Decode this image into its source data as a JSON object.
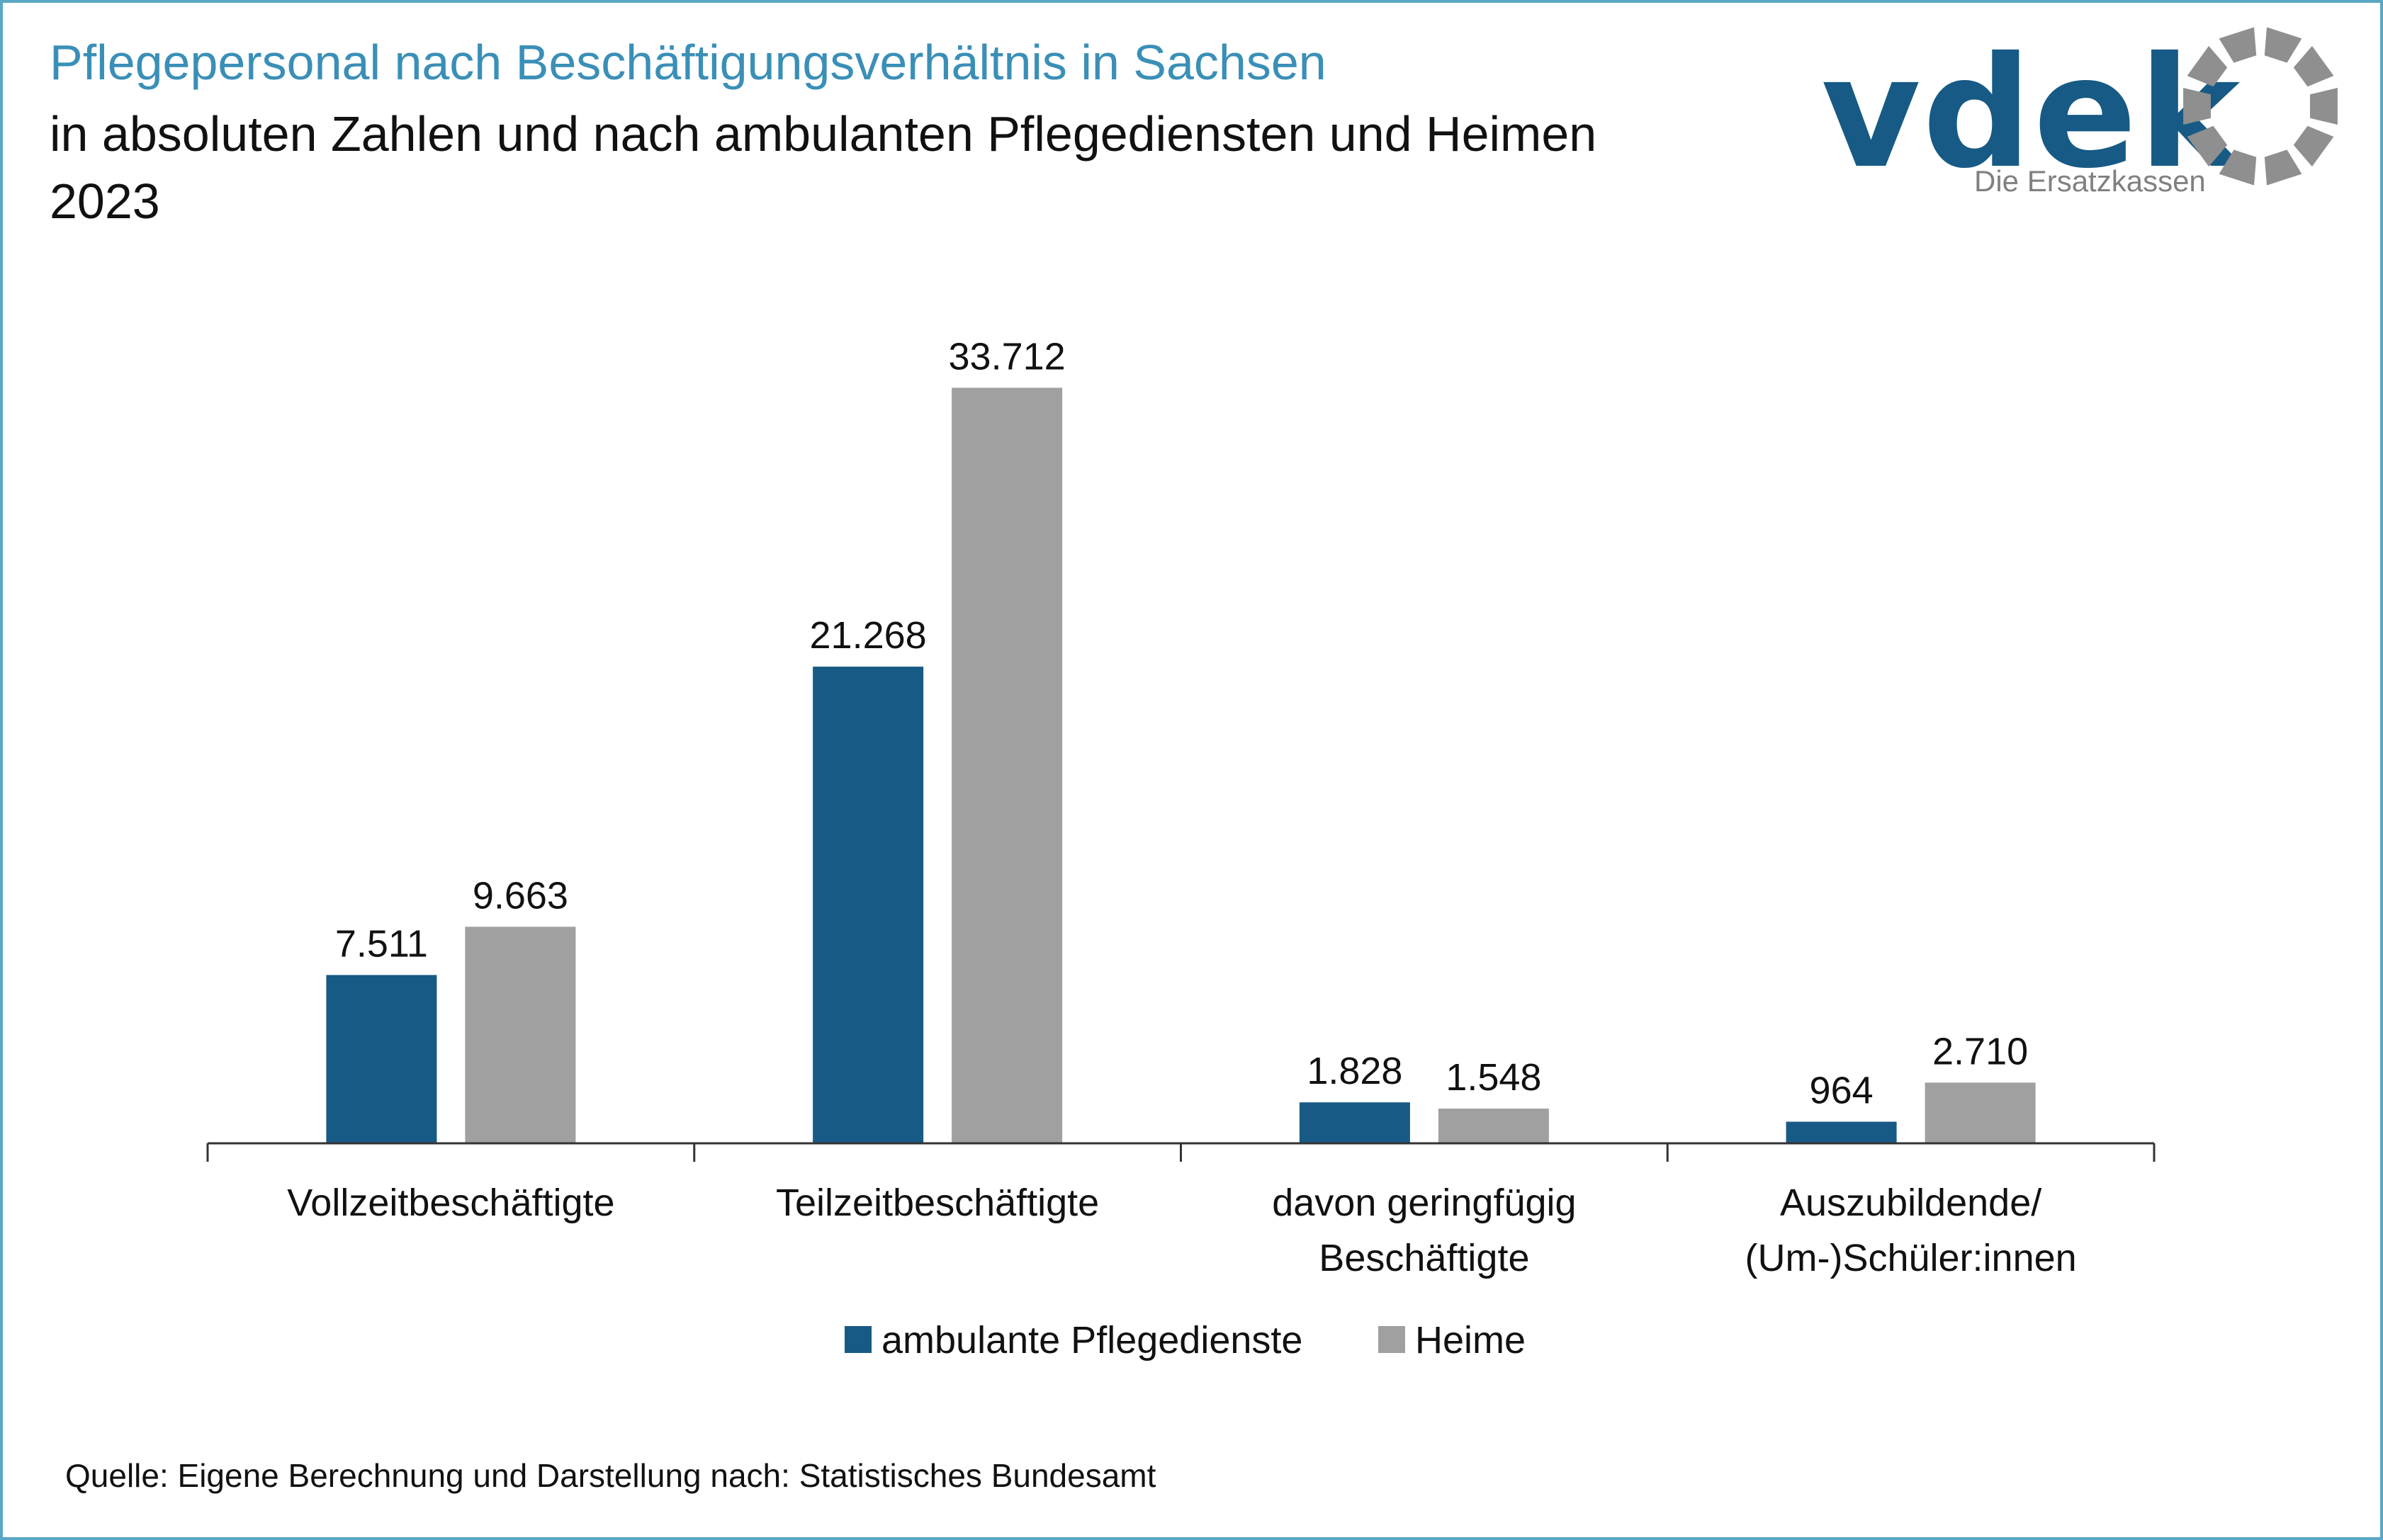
{
  "header": {
    "title": "Pflegepersonal nach Beschäftigungsverhältnis in Sachsen",
    "subtitle_line1": "in absoluten Zahlen und nach ambulanten Pflegediensten und Heimen",
    "subtitle_line2": "2023"
  },
  "logo": {
    "wordmark": "vdek",
    "tagline": "Die Ersatzkassen",
    "icon": "ring-of-segments-icon"
  },
  "chart_data": {
    "type": "bar",
    "title": "Pflegepersonal nach Beschäftigungsverhältnis in Sachsen",
    "categories": [
      [
        "Vollzeitbeschäftigte"
      ],
      [
        "Teilzeitbeschäftigte"
      ],
      [
        "davon geringfügig",
        "Beschäftigte"
      ],
      [
        "Auszubildende/",
        "(Um-)Schüler:innen"
      ]
    ],
    "series": [
      {
        "name": "ambulante Pflegedienste",
        "color": "#175a85",
        "values": [
          7511,
          21268,
          1828,
          964
        ],
        "labels": [
          "7.511",
          "21.268",
          "1.828",
          "964"
        ]
      },
      {
        "name": "Heime",
        "color": "#a0a0a0",
        "values": [
          9663,
          33712,
          1548,
          2710
        ],
        "labels": [
          "9.663",
          "33.712",
          "1.548",
          "2.710"
        ]
      }
    ],
    "ylim": [
      0,
      36000
    ],
    "grid": false,
    "legend_position": "bottom"
  },
  "footer": {
    "source": "Quelle: Eigene Berechnung und Darstellung nach: Statistisches Bundesamt"
  }
}
